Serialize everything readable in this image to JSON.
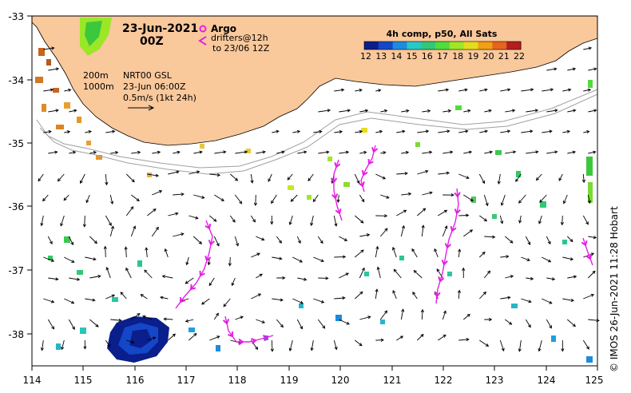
{
  "title": {
    "date": "23-Jun-2021",
    "hour": "00Z"
  },
  "legend": {
    "argo_label": "Argo",
    "drifters_line1": "drifters@12h",
    "drifters_line2": "to 23/06 12Z"
  },
  "colorbar": {
    "title": "4h comp, p50, All Sats",
    "ticks": [
      "12",
      "13",
      "14",
      "15",
      "16",
      "17",
      "18",
      "19",
      "20",
      "21",
      "22"
    ],
    "colors": [
      "#0a1e8c",
      "#1446c8",
      "#1e8cdc",
      "#28c8c8",
      "#32c878",
      "#50dc3c",
      "#a0e628",
      "#e6dc1e",
      "#f0a014",
      "#e6641e",
      "#b41e1e"
    ]
  },
  "bathymetry": {
    "label_200": "200m",
    "label_1000": "1000m"
  },
  "info": {
    "line1": "NRT00 GSL",
    "line2": "23-Jun 06:00Z",
    "line3": "0.5m/s (1kt 24h)"
  },
  "x_axis": {
    "ticks": [
      "114",
      "115",
      "116",
      "117",
      "118",
      "119",
      "120",
      "121",
      "122",
      "123",
      "124",
      "125"
    ]
  },
  "y_axis": {
    "ticks": [
      "-33",
      "-34",
      "-35",
      "-36",
      "-37",
      "-38"
    ]
  },
  "credit": "© IMOS 26-Jun-2021 11:28 Hobart",
  "colors": {
    "land": "#f9c89b",
    "arrow": "#000000",
    "drifter": "#e61ee6",
    "isobath": "#a0a0a0"
  }
}
